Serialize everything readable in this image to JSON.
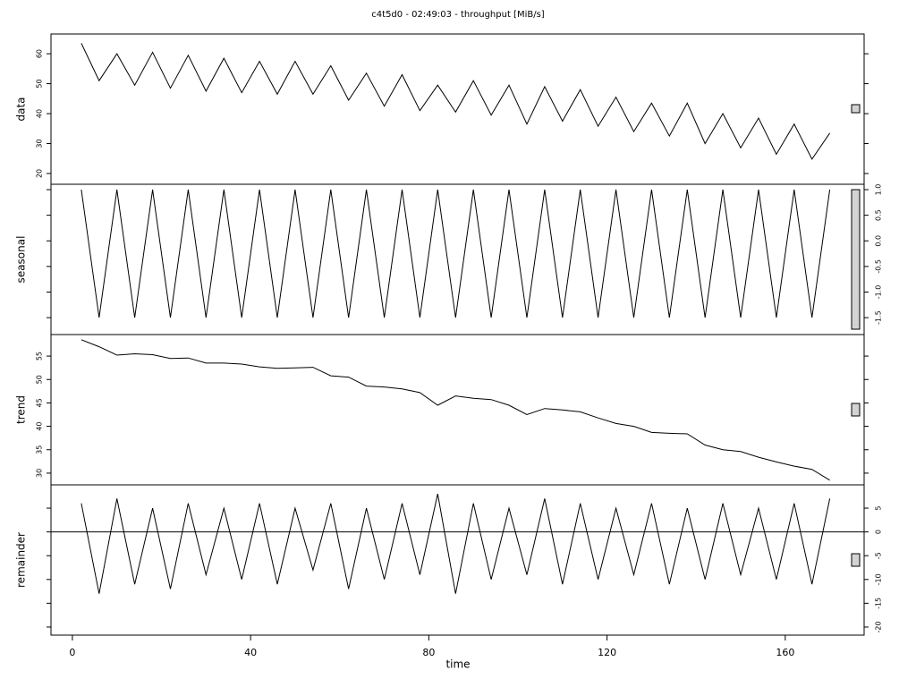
{
  "title": "c4t5d0 - 02:49:03 - throughput [MiB/s]",
  "xlabel": "time",
  "chart_data": [
    {
      "type": "line",
      "ylabel": "data",
      "yaxis": "left",
      "x": [
        2,
        6,
        10,
        14,
        18,
        22,
        26,
        30,
        34,
        38,
        42,
        46,
        50,
        54,
        58,
        62,
        66,
        70,
        74,
        78,
        82,
        86,
        90,
        94,
        98,
        102,
        106,
        110,
        114,
        118,
        122,
        126,
        130,
        134,
        138,
        142,
        146,
        150,
        154,
        158,
        162,
        166,
        170
      ],
      "values": [
        63.5,
        51,
        60,
        49.5,
        60.5,
        48.5,
        59.5,
        47.5,
        58.5,
        47,
        57.5,
        46.5,
        57.5,
        46.5,
        56,
        44.5,
        53.5,
        42.5,
        53,
        41,
        49.5,
        40.5,
        51,
        39.5,
        49.5,
        36.5,
        49,
        37.5,
        48,
        35.8,
        45.5,
        34,
        43.5,
        32.5,
        43.5,
        30,
        40,
        28.6,
        38.5,
        26.4,
        36.5,
        24.8,
        33.5
      ],
      "color": "#000000",
      "xlim": [
        -4.8,
        177.7
      ],
      "ylim": [
        16.4,
        66.6
      ],
      "yticks": [
        20,
        30,
        40,
        50,
        60
      ]
    },
    {
      "type": "line",
      "ylabel": "seasonal",
      "yaxis": "right",
      "x": [
        2,
        6,
        10,
        14,
        18,
        22,
        26,
        30,
        34,
        38,
        42,
        46,
        50,
        54,
        58,
        62,
        66,
        70,
        74,
        78,
        82,
        86,
        90,
        94,
        98,
        102,
        106,
        110,
        114,
        118,
        122,
        126,
        130,
        134,
        138,
        142,
        146,
        150,
        154,
        158,
        162,
        166,
        170
      ],
      "values": [
        1,
        -1.5,
        1,
        -1.5,
        1,
        -1.5,
        1,
        -1.5,
        1,
        -1.5,
        1,
        -1.5,
        1,
        -1.5,
        1,
        -1.5,
        1,
        -1.5,
        1,
        -1.5,
        1,
        -1.5,
        1,
        -1.5,
        1,
        -1.5,
        1,
        -1.5,
        1,
        -1.5,
        1,
        -1.5,
        1,
        -1.5,
        1,
        -1.5,
        1,
        -1.5,
        1,
        -1.5,
        1,
        -1.5,
        1
      ],
      "color": "#000000",
      "xlim": [
        -4.8,
        177.7
      ],
      "ylim": [
        -1.83,
        1.105
      ],
      "yticks": [
        {
          "value": 1,
          "label": "1.0"
        },
        0.5,
        {
          "value": 0,
          "label": "0.0"
        },
        -0.5,
        {
          "value": -1,
          "label": "-1.0"
        },
        -1.5
      ]
    },
    {
      "type": "line",
      "ylabel": "trend",
      "yaxis": "left",
      "x": [
        2,
        6,
        10,
        14,
        18,
        22,
        26,
        30,
        34,
        38,
        42,
        46,
        50,
        54,
        58,
        62,
        66,
        70,
        74,
        78,
        82,
        86,
        90,
        94,
        98,
        102,
        106,
        110,
        114,
        118,
        122,
        126,
        130,
        134,
        138,
        142,
        146,
        150,
        154,
        158,
        162,
        166,
        170
      ],
      "values": [
        58.5,
        57,
        55.2,
        55.5,
        55.3,
        54.5,
        54.6,
        53.5,
        53.5,
        53.3,
        52.7,
        52.4,
        52.5,
        52.6,
        50.8,
        50.5,
        48.6,
        48.4,
        48,
        47.2,
        44.5,
        46.5,
        46,
        45.7,
        44.5,
        42.5,
        43.8,
        43.5,
        43.1,
        41.8,
        40.6,
        40,
        38.7,
        38.5,
        38.4,
        36,
        35,
        34.6,
        33.4,
        32.4,
        31.5,
        30.8,
        28.5
      ],
      "color": "#000000",
      "xlim": [
        -4.8,
        177.7
      ],
      "ylim": [
        27.5,
        59.6
      ],
      "yticks": [
        30,
        35,
        40,
        45,
        50,
        55
      ]
    },
    {
      "type": "line",
      "ylabel": "remainder",
      "yaxis": "right",
      "x": [
        2,
        6,
        10,
        14,
        18,
        22,
        26,
        30,
        34,
        38,
        42,
        46,
        50,
        54,
        58,
        62,
        66,
        70,
        74,
        78,
        82,
        86,
        90,
        94,
        98,
        102,
        106,
        110,
        114,
        118,
        122,
        126,
        130,
        134,
        138,
        142,
        146,
        150,
        154,
        158,
        162,
        166,
        170
      ],
      "values": [
        6,
        -13,
        7,
        -11,
        5,
        -12,
        6,
        -9,
        5,
        -10,
        6,
        -11,
        5,
        -8,
        6,
        -12,
        5,
        -10,
        6,
        -9,
        8,
        -13,
        6,
        -10,
        5,
        -9,
        7,
        -11,
        6,
        -10,
        5,
        -9,
        6,
        -11,
        5,
        -10,
        6,
        -9,
        5,
        -10,
        6,
        -11,
        7
      ],
      "color": "#000000",
      "hline": 0,
      "xlim": [
        -4.8,
        177.7
      ],
      "ylim": [
        -21.7,
        9.9
      ],
      "yticks": [
        5,
        0,
        -5,
        -10,
        -15,
        -20
      ],
      "xticks": [
        0,
        40,
        80,
        120,
        160
      ]
    }
  ]
}
